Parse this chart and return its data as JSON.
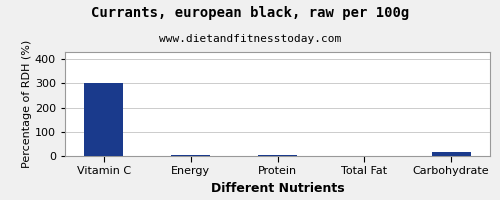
{
  "title": "Currants, european black, raw per 100g",
  "subtitle": "www.dietandfitnesstoday.com",
  "xlabel": "Different Nutrients",
  "ylabel": "Percentage of RDH (%)",
  "categories": [
    "Vitamin C",
    "Energy",
    "Protein",
    "Total Fat",
    "Carbohydrate"
  ],
  "values": [
    302,
    3,
    5,
    1,
    15
  ],
  "bar_color": "#1a3a8c",
  "ylim": [
    0,
    430
  ],
  "yticks": [
    0,
    100,
    200,
    300,
    400
  ],
  "background_color": "#f0f0f0",
  "plot_bg_color": "#ffffff",
  "title_fontsize": 10,
  "subtitle_fontsize": 8,
  "axis_label_fontsize": 8,
  "xlabel_fontsize": 9,
  "tick_fontsize": 8,
  "bar_width": 0.45
}
